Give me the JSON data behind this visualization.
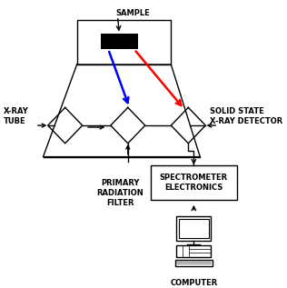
{
  "bg_color": "#ffffff",
  "line_color": "#000000",
  "blue_color": "#0000ff",
  "red_color": "#ff0000",
  "sample_label": "SAMPLE",
  "xray_tube_label": "X-RAY\nTUBE",
  "filter_label": "PRIMARY\nRADIATION\nFILTER",
  "detector_label": "SOLID STATE\nX-RAY DETECTOR",
  "spectrometer_label": "SPECTROMETER\nELECTRONICS",
  "computer_label": "COMPUTER",
  "font_size": 6.0
}
